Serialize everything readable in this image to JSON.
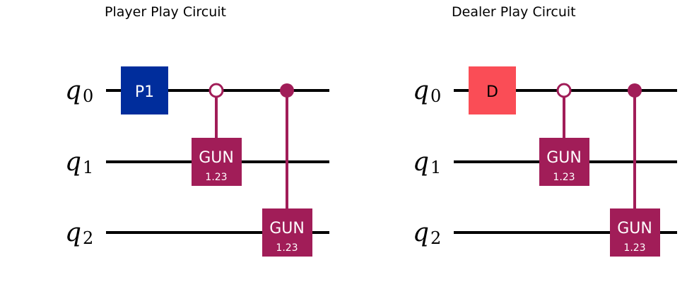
{
  "circuits": [
    {
      "title": "Player Play Circuit",
      "qubits": [
        {
          "name": "q",
          "index": "0"
        },
        {
          "name": "q",
          "index": "1"
        },
        {
          "name": "q",
          "index": "2"
        }
      ],
      "first_gate": {
        "label": "P1",
        "color": "#002d9c",
        "text_color": "#ffffff"
      },
      "controlled_gates": [
        {
          "label": "GUN",
          "param": "1.23",
          "control": "q0",
          "control_state": "0",
          "target": "q1"
        },
        {
          "label": "GUN",
          "param": "1.23",
          "control": "q0",
          "control_state": "1",
          "target": "q2"
        }
      ]
    },
    {
      "title": "Dealer Play Circuit",
      "qubits": [
        {
          "name": "q",
          "index": "0"
        },
        {
          "name": "q",
          "index": "1"
        },
        {
          "name": "q",
          "index": "2"
        }
      ],
      "first_gate": {
        "label": "D",
        "color": "#fa4d56",
        "text_color": "#000000"
      },
      "controlled_gates": [
        {
          "label": "GUN",
          "param": "1.23",
          "control": "q0",
          "control_state": "0",
          "target": "q1"
        },
        {
          "label": "GUN",
          "param": "1.23",
          "control": "q0",
          "control_state": "1",
          "target": "q2"
        }
      ]
    }
  ],
  "colors": {
    "wire": "#000000",
    "controlled_gate": "#a11d58"
  }
}
